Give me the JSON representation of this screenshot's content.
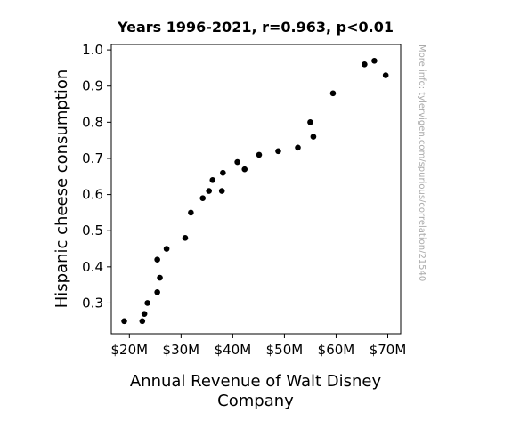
{
  "chart_data": {
    "type": "scatter",
    "title": "Years 1996-2021, r=0.963, p<0.01",
    "xlabel": [
      "Annual Revenue of Walt Disney",
      "Company"
    ],
    "ylabel": "Hispanic cheese consumption",
    "side_note": "More info: tylervigen.com/spurious/correlation/21540",
    "xlim": [
      16.5,
      72.5
    ],
    "ylim": [
      0.215,
      1.015
    ],
    "x_ticks": [
      {
        "value": 20,
        "label": "$20M"
      },
      {
        "value": 30,
        "label": "$30M"
      },
      {
        "value": 40,
        "label": "$40M"
      },
      {
        "value": 50,
        "label": "$50M"
      },
      {
        "value": 60,
        "label": "$60M"
      },
      {
        "value": 70,
        "label": "$70M"
      }
    ],
    "y_ticks": [
      {
        "value": 0.3,
        "label": "0.3"
      },
      {
        "value": 0.4,
        "label": "0.4"
      },
      {
        "value": 0.5,
        "label": "0.5"
      },
      {
        "value": 0.6,
        "label": "0.6"
      },
      {
        "value": 0.7,
        "label": "0.7"
      },
      {
        "value": 0.8,
        "label": "0.8"
      },
      {
        "value": 0.9,
        "label": "0.9"
      },
      {
        "value": 1.0,
        "label": "1.0"
      }
    ],
    "grid": false,
    "point_color": "#000000",
    "points": [
      {
        "x": 19.0,
        "y": 0.25
      },
      {
        "x": 22.5,
        "y": 0.25
      },
      {
        "x": 22.9,
        "y": 0.27
      },
      {
        "x": 23.5,
        "y": 0.3
      },
      {
        "x": 25.4,
        "y": 0.33
      },
      {
        "x": 25.4,
        "y": 0.42
      },
      {
        "x": 25.9,
        "y": 0.37
      },
      {
        "x": 27.2,
        "y": 0.45
      },
      {
        "x": 30.8,
        "y": 0.48
      },
      {
        "x": 31.9,
        "y": 0.55
      },
      {
        "x": 34.2,
        "y": 0.59
      },
      {
        "x": 35.4,
        "y": 0.61
      },
      {
        "x": 36.1,
        "y": 0.64
      },
      {
        "x": 37.9,
        "y": 0.61
      },
      {
        "x": 38.1,
        "y": 0.66
      },
      {
        "x": 40.9,
        "y": 0.69
      },
      {
        "x": 42.3,
        "y": 0.67
      },
      {
        "x": 45.1,
        "y": 0.71
      },
      {
        "x": 48.8,
        "y": 0.72
      },
      {
        "x": 52.6,
        "y": 0.73
      },
      {
        "x": 55.0,
        "y": 0.8
      },
      {
        "x": 55.6,
        "y": 0.76
      },
      {
        "x": 59.4,
        "y": 0.88
      },
      {
        "x": 65.5,
        "y": 0.96
      },
      {
        "x": 67.4,
        "y": 0.97
      },
      {
        "x": 69.6,
        "y": 0.93
      }
    ]
  }
}
